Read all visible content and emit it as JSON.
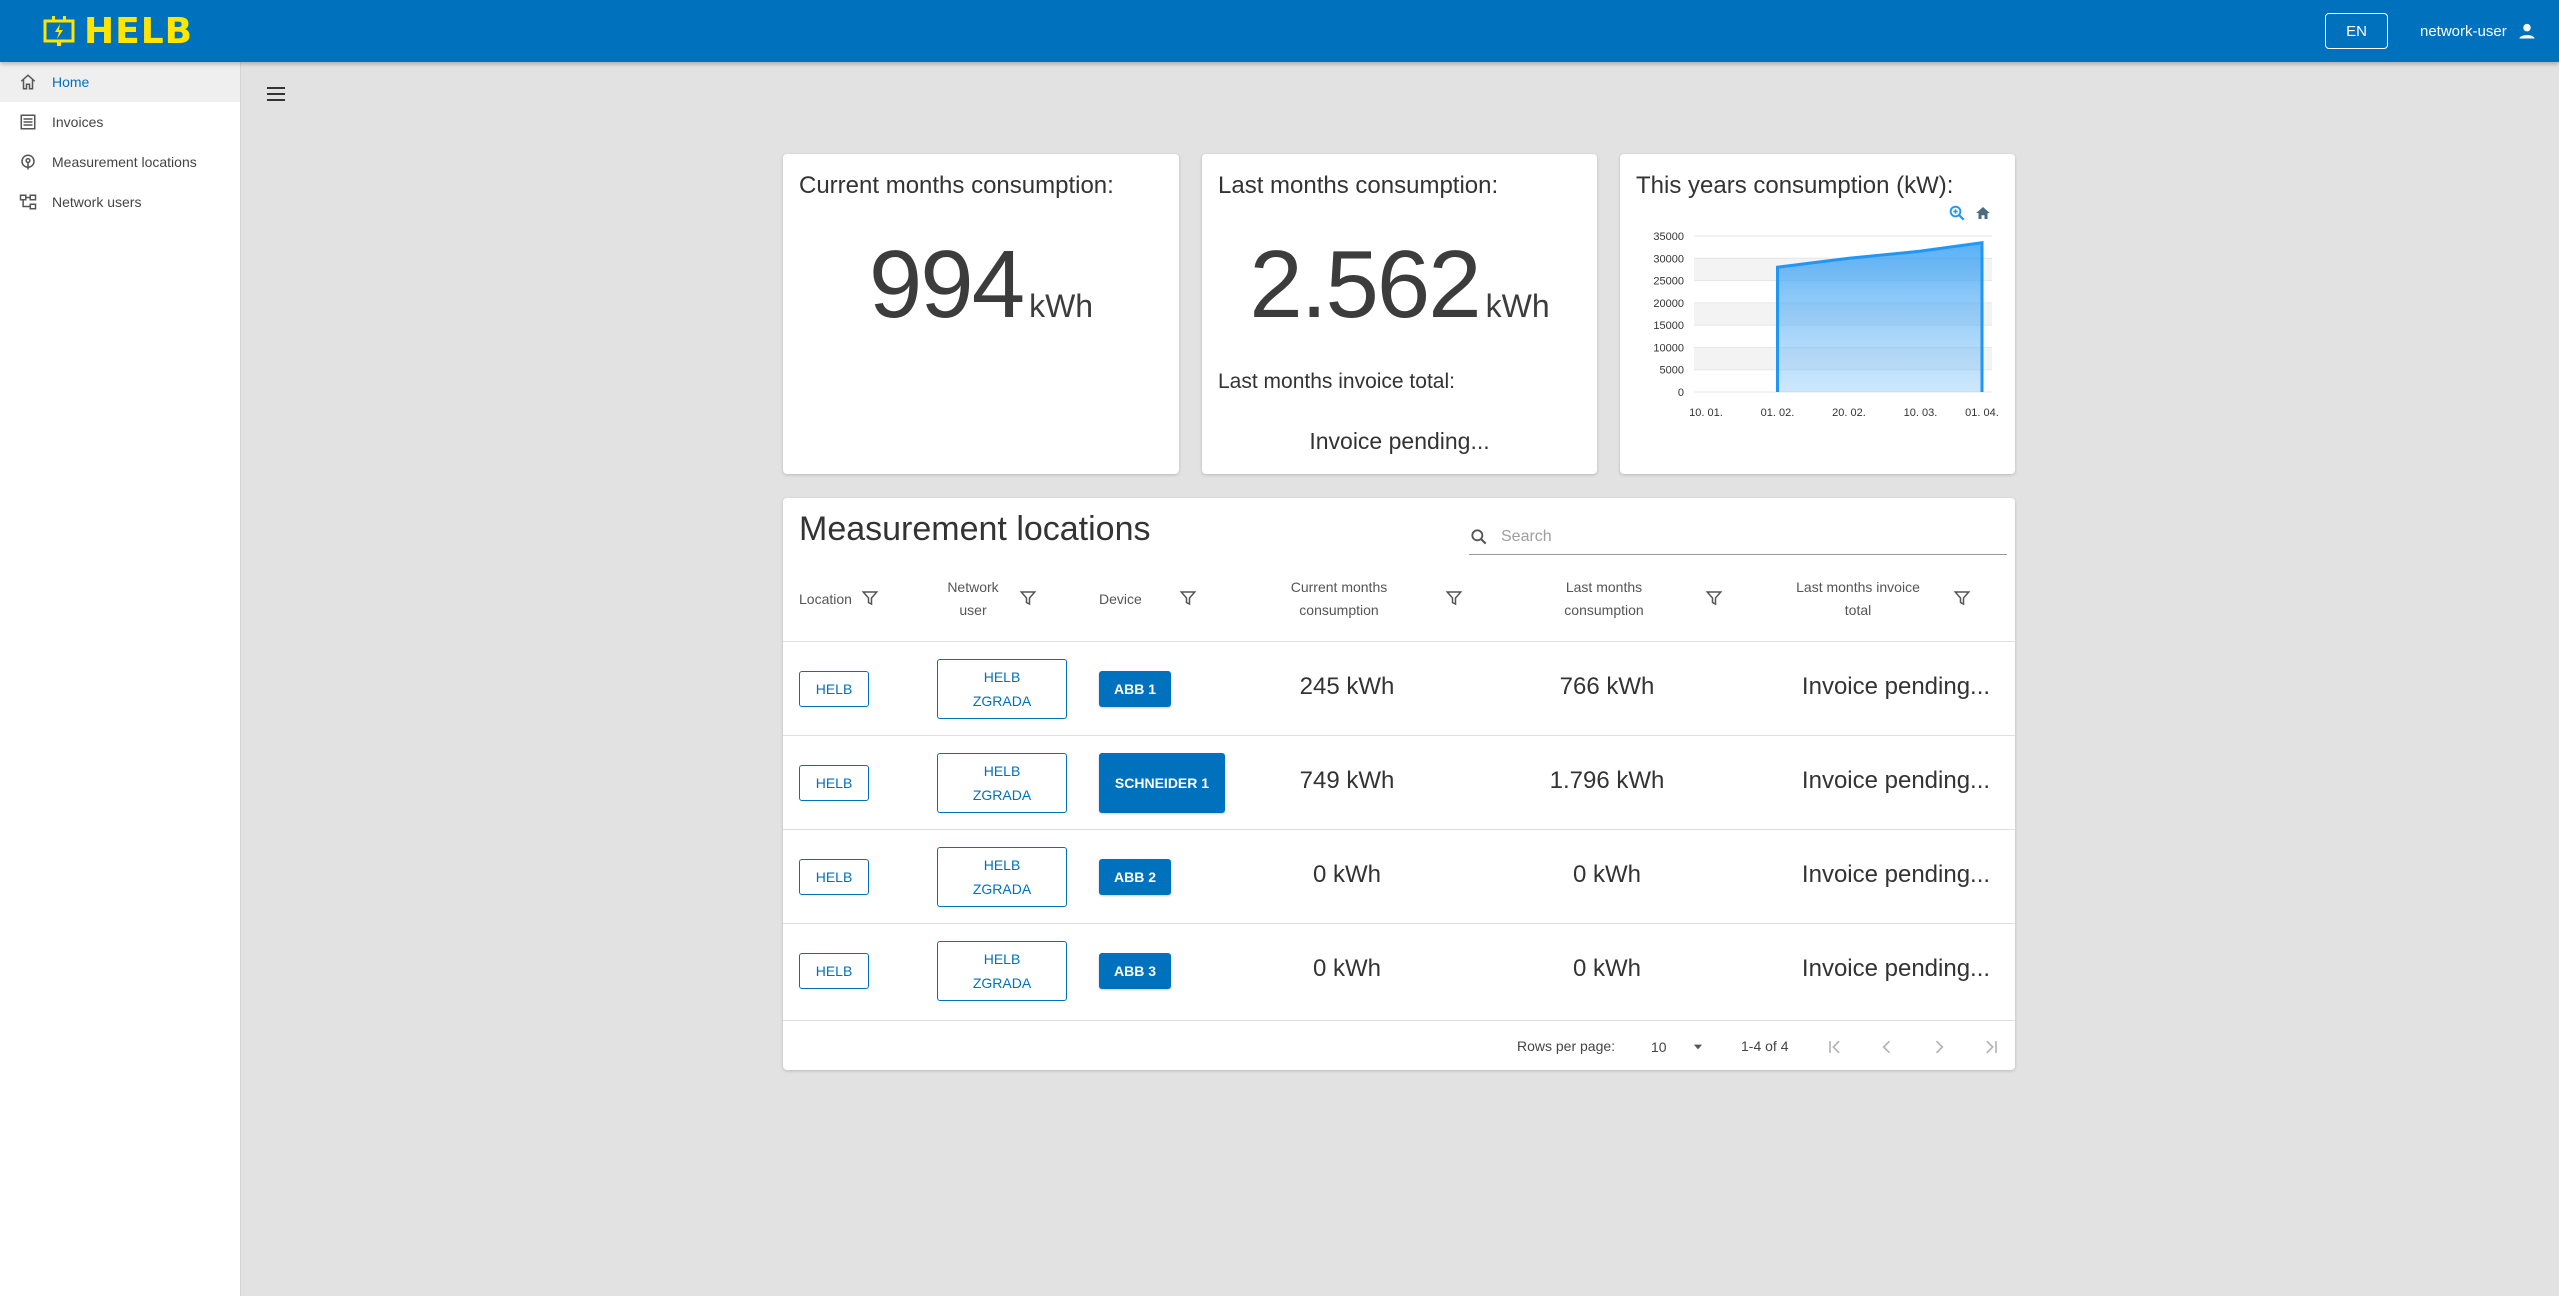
{
  "app": {
    "brand": "HELB",
    "language_button": "EN",
    "username": "network-user"
  },
  "sidebar": {
    "items": [
      {
        "label": "Home",
        "icon": "home-icon",
        "active": true
      },
      {
        "label": "Invoices",
        "icon": "list-icon",
        "active": false
      },
      {
        "label": "Measurement locations",
        "icon": "location-icon",
        "active": false
      },
      {
        "label": "Network users",
        "icon": "hierarchy-icon",
        "active": false
      }
    ]
  },
  "cards": {
    "current_month": {
      "title": "Current months consumption:",
      "value": "994",
      "unit": "kWh"
    },
    "last_month": {
      "title": "Last months consumption:",
      "value": "2.562",
      "unit": "kWh",
      "invoice_label": "Last months invoice total:",
      "invoice_value": "Invoice pending..."
    },
    "this_year": {
      "title": "This years consumption (kW):"
    }
  },
  "chart_data": {
    "type": "area",
    "title": "This years consumption (kW):",
    "x_tick_labels": [
      "10. 01.",
      "01. 02.",
      "20. 02.",
      "10. 03.",
      "01. 04."
    ],
    "y_tick_labels": [
      "0",
      "5000",
      "10000",
      "15000",
      "20000",
      "25000",
      "30000",
      "35000"
    ],
    "ylim": [
      0,
      35000
    ],
    "series": [
      {
        "x": [
          "01. 02.",
          "20. 02.",
          "10. 03.",
          "01. 04."
        ],
        "values": [
          28000,
          30000,
          31600,
          33500
        ]
      }
    ],
    "grid": true,
    "colors": {
      "line": "#2196f3",
      "fill": "#90caf9"
    }
  },
  "table": {
    "title": "Measurement locations",
    "search_placeholder": "Search",
    "columns": [
      {
        "label": "Location"
      },
      {
        "label": "Network user"
      },
      {
        "label": "Device"
      },
      {
        "label": "Current months consumption"
      },
      {
        "label": "Last months consumption"
      },
      {
        "label": "Last months invoice total"
      }
    ],
    "rows": [
      {
        "location": "HELB",
        "network_user": "HELB ZGRADA",
        "device": "ABB 1",
        "current": "245 kWh",
        "last": "766 kWh",
        "invoice": "Invoice pending..."
      },
      {
        "location": "HELB",
        "network_user": "HELB ZGRADA",
        "device": "SCHNEIDER 1",
        "current": "749 kWh",
        "last": "1.796 kWh",
        "invoice": "Invoice pending..."
      },
      {
        "location": "HELB",
        "network_user": "HELB ZGRADA",
        "device": "ABB 2",
        "current": "0 kWh",
        "last": "0 kWh",
        "invoice": "Invoice pending..."
      },
      {
        "location": "HELB",
        "network_user": "HELB ZGRADA",
        "device": "ABB 3",
        "current": "0 kWh",
        "last": "0 kWh",
        "invoice": "Invoice pending..."
      }
    ],
    "pagination": {
      "rows_per_page_label": "Rows per page:",
      "rows_per_page": "10",
      "range": "1-4 of 4"
    }
  },
  "colors": {
    "primary": "#0071bd",
    "brand_yellow": "#ffe500",
    "background": "#e2e2e2"
  }
}
